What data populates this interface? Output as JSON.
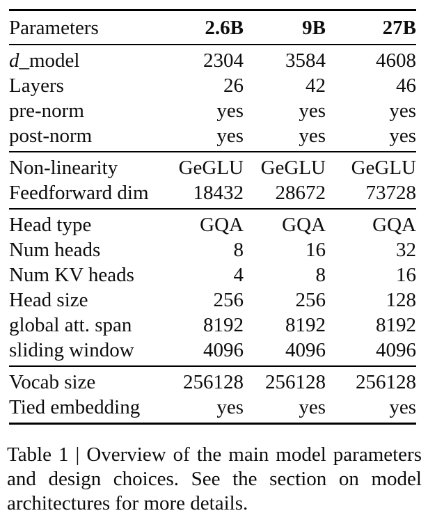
{
  "colors": {
    "background": "#ffffff",
    "text": "#0d0d0d",
    "rule": "#000000"
  },
  "table": {
    "header": {
      "label": "Parameters",
      "columns": [
        "2.6B",
        "9B",
        "27B"
      ]
    },
    "sections": [
      {
        "rows": [
          {
            "label_italic_prefix": "d",
            "label": "_model",
            "values": [
              "2304",
              "3584",
              "4608"
            ]
          },
          {
            "label": "Layers",
            "values": [
              "26",
              "42",
              "46"
            ]
          },
          {
            "label": "pre-norm",
            "values": [
              "yes",
              "yes",
              "yes"
            ]
          },
          {
            "label": "post-norm",
            "values": [
              "yes",
              "yes",
              "yes"
            ]
          }
        ]
      },
      {
        "rows": [
          {
            "label": "Non-linearity",
            "values": [
              "GeGLU",
              "GeGLU",
              "GeGLU"
            ]
          },
          {
            "label": "Feedforward dim",
            "values": [
              "18432",
              "28672",
              "73728"
            ]
          }
        ]
      },
      {
        "rows": [
          {
            "label": "Head type",
            "values": [
              "GQA",
              "GQA",
              "GQA"
            ]
          },
          {
            "label": "Num heads",
            "values": [
              "8",
              "16",
              "32"
            ]
          },
          {
            "label": "Num KV heads",
            "values": [
              "4",
              "8",
              "16"
            ]
          },
          {
            "label": "Head size",
            "values": [
              "256",
              "256",
              "128"
            ]
          },
          {
            "label": "global att. span",
            "values": [
              "8192",
              "8192",
              "8192"
            ]
          },
          {
            "label": "sliding window",
            "values": [
              "4096",
              "4096",
              "4096"
            ]
          }
        ]
      },
      {
        "rows": [
          {
            "label": "Vocab size",
            "values": [
              "256128",
              "256128",
              "256128"
            ]
          },
          {
            "label": "Tied embedding",
            "values": [
              "yes",
              "yes",
              "yes"
            ]
          }
        ]
      }
    ]
  },
  "caption": {
    "text": "Table 1 | Overview of the main model parameters and design choices. See the section on model architectures for more details."
  }
}
